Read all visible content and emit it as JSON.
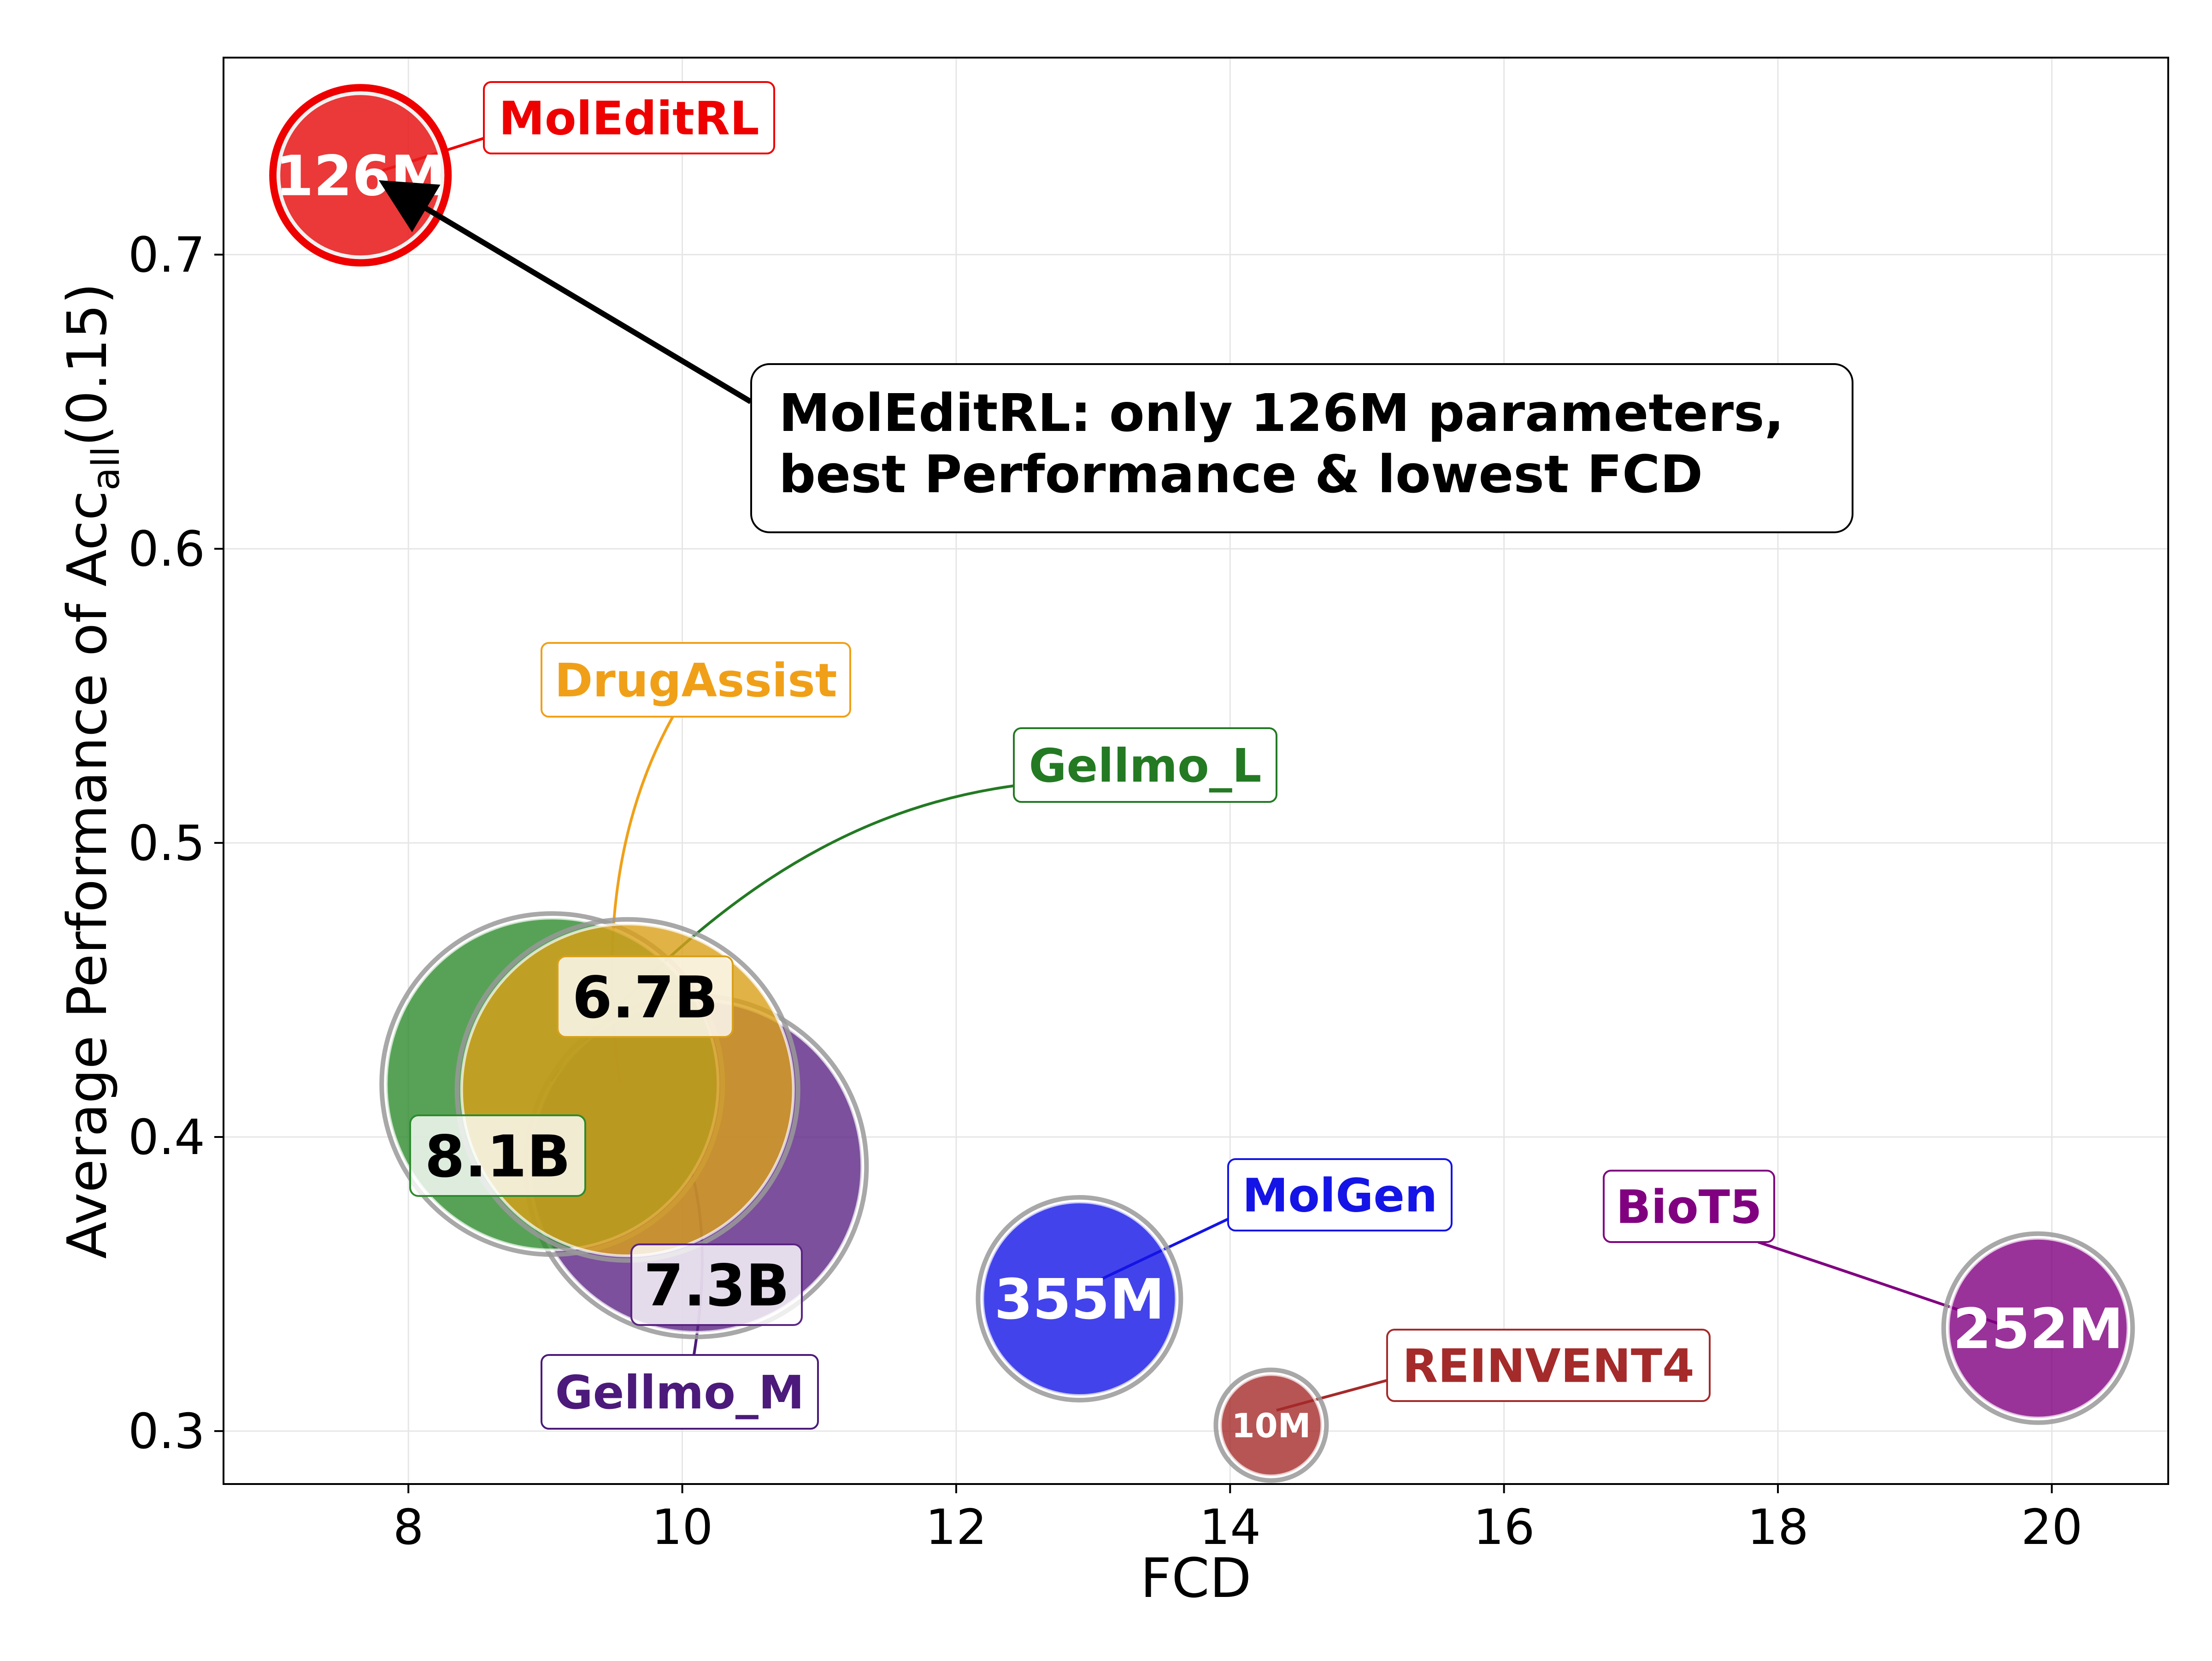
{
  "chart_data": {
    "type": "scatter",
    "subtype": "bubble",
    "title": "",
    "xlabel": "FCD",
    "ylabel_prefix": "Average Performance of Acc",
    "ylabel_sub": "all",
    "ylabel_suffix": "(0.15)",
    "xlim": [
      6.65,
      20.85
    ],
    "ylim": [
      0.282,
      0.767
    ],
    "x_ticks": [
      8,
      10,
      12,
      14,
      16,
      18,
      20
    ],
    "x_tick_labels": [
      "8",
      "10",
      "12",
      "14",
      "16",
      "18",
      "20"
    ],
    "y_ticks": [
      0.3,
      0.4,
      0.5,
      0.6,
      0.7
    ],
    "y_tick_labels": [
      "0.3",
      "0.4",
      "0.5",
      "0.6",
      "0.7"
    ],
    "grid": true,
    "points": [
      {
        "name": "Gellmo_M",
        "x": 10.1,
        "y": 0.39,
        "size_label": "7.3B",
        "params_billion": 7.3,
        "color": "#5b2483"
      },
      {
        "name": "Gellmo_L",
        "x": 9.05,
        "y": 0.418,
        "size_label": "8.1B",
        "params_billion": 8.1,
        "color": "#2e8b2e"
      },
      {
        "name": "DrugAssist",
        "x": 9.6,
        "y": 0.416,
        "size_label": "6.7B",
        "params_billion": 6.7,
        "color": "#d9a019"
      },
      {
        "name": "MolGen",
        "x": 12.9,
        "y": 0.345,
        "size_label": "355M",
        "params_billion": 0.355,
        "color": "#1414e6"
      },
      {
        "name": "REINVENT4",
        "x": 14.3,
        "y": 0.302,
        "size_label": "10M",
        "params_billion": 0.01,
        "color": "#a52a2a"
      },
      {
        "name": "BioT5",
        "x": 19.9,
        "y": 0.335,
        "size_label": "252M",
        "params_billion": 0.252,
        "color": "#800080"
      },
      {
        "name": "MolEditRL",
        "x": 7.65,
        "y": 0.727,
        "size_label": "126M",
        "params_billion": 0.126,
        "color": "#e81c1c",
        "highlight": true
      }
    ],
    "annotation": {
      "line1": "MolEditRL: only 126M parameters,",
      "line2": "best Performance & lowest FCD",
      "arrow_from": {
        "x": 10.5,
        "y": 0.65
      },
      "arrow_to": {
        "x": 7.82,
        "y": 0.724
      }
    }
  }
}
